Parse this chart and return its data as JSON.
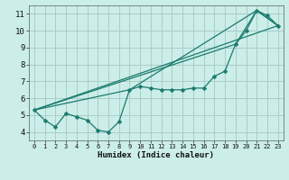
{
  "bg_color": "#cceee8",
  "grid_color": "#aacccc",
  "line_color": "#1a7a6e",
  "marker_color": "#1a7a6e",
  "xlabel": "Humidex (Indice chaleur)",
  "xlim": [
    -0.5,
    23.5
  ],
  "ylim": [
    3.5,
    11.5
  ],
  "yticks": [
    4,
    5,
    6,
    7,
    8,
    9,
    10,
    11
  ],
  "xticks": [
    0,
    1,
    2,
    3,
    4,
    5,
    6,
    7,
    8,
    9,
    10,
    11,
    12,
    13,
    14,
    15,
    16,
    17,
    18,
    19,
    20,
    21,
    22,
    23
  ],
  "series_main_x": [
    0,
    1,
    2,
    3,
    4,
    5,
    6,
    7,
    8,
    9,
    10,
    11,
    12,
    13,
    14,
    15,
    16,
    17,
    18,
    19,
    20,
    21,
    22,
    23
  ],
  "series_main_y": [
    5.3,
    4.7,
    4.3,
    5.1,
    4.9,
    4.7,
    4.1,
    4.0,
    4.6,
    6.5,
    6.7,
    6.6,
    6.5,
    6.5,
    6.5,
    6.6,
    6.6,
    7.3,
    7.6,
    9.2,
    10.0,
    11.2,
    10.9,
    10.3
  ],
  "series_line2_x": [
    0,
    9,
    21,
    23
  ],
  "series_line2_y": [
    5.3,
    6.5,
    11.2,
    10.3
  ],
  "series_line3_x": [
    0,
    19,
    21,
    23
  ],
  "series_line3_y": [
    5.3,
    9.2,
    11.2,
    10.3
  ],
  "series_line4_x": [
    0,
    23
  ],
  "series_line4_y": [
    5.3,
    10.3
  ]
}
